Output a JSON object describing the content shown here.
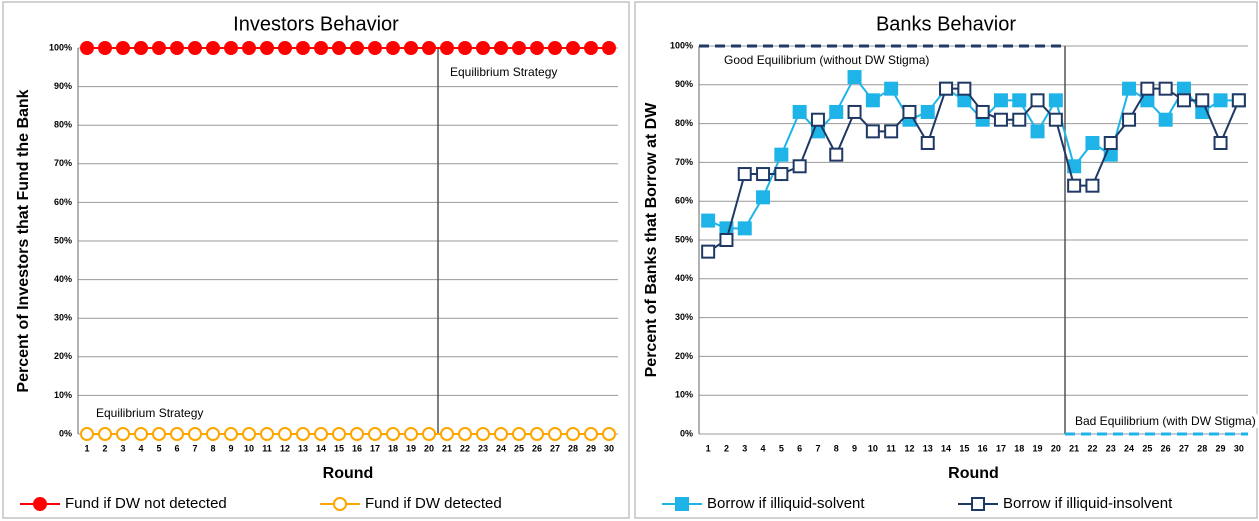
{
  "chart_data": [
    {
      "type": "line",
      "title": "Investors Behavior",
      "x_label": "Round",
      "y_label": "Percent of Investors that Fund the Bank",
      "categories": [
        1,
        2,
        3,
        4,
        5,
        6,
        7,
        8,
        9,
        10,
        11,
        12,
        13,
        14,
        15,
        16,
        17,
        18,
        19,
        20,
        21,
        22,
        23,
        24,
        25,
        26,
        27,
        28,
        29,
        30
      ],
      "series": [
        {
          "name": "Fund if DW not detected",
          "color": "#ff0000",
          "marker": "circle",
          "filled": true,
          "values": [
            100,
            100,
            100,
            100,
            100,
            100,
            100,
            100,
            100,
            100,
            100,
            100,
            100,
            100,
            100,
            100,
            100,
            100,
            100,
            100,
            100,
            100,
            100,
            100,
            100,
            100,
            100,
            100,
            100,
            100
          ]
        },
        {
          "name": "Fund if DW detected",
          "color": "#ffa500",
          "marker": "circle",
          "filled": false,
          "values": [
            0,
            0,
            0,
            0,
            0,
            0,
            0,
            0,
            0,
            0,
            0,
            0,
            0,
            0,
            0,
            0,
            0,
            0,
            0,
            0,
            0,
            0,
            0,
            0,
            0,
            0,
            0,
            0,
            0,
            0
          ]
        }
      ],
      "annotations": [
        "Equilibrium Strategy",
        "Equilibrium Strategy"
      ],
      "ylim": [
        0,
        100
      ],
      "yticks": [
        {
          "value": 0,
          "label": "0%"
        },
        {
          "value": 10,
          "label": "10%"
        },
        {
          "value": 20,
          "label": "20%"
        },
        {
          "value": 30,
          "label": "30%"
        },
        {
          "value": 40,
          "label": "40%"
        },
        {
          "value": 50,
          "label": "50%"
        },
        {
          "value": 60,
          "label": "60%"
        },
        {
          "value": 70,
          "label": "70%"
        },
        {
          "value": 80,
          "label": "80%"
        },
        {
          "value": 90,
          "label": "90%"
        },
        {
          "value": 100,
          "label": "100%"
        }
      ],
      "grid": true
    },
    {
      "type": "line",
      "title": "Banks Behavior",
      "x_label": "Round",
      "y_label": "Percent of Banks that Borrow at DW",
      "categories": [
        1,
        2,
        3,
        4,
        5,
        6,
        7,
        8,
        9,
        10,
        11,
        12,
        13,
        14,
        15,
        16,
        17,
        18,
        19,
        20,
        21,
        22,
        23,
        24,
        25,
        26,
        27,
        28,
        29,
        30
      ],
      "series": [
        {
          "name": "Borrow if illiquid-solvent",
          "color": "#1eb4e8",
          "marker": "square",
          "filled": true,
          "values": [
            55,
            53,
            53,
            61,
            72,
            83,
            78,
            83,
            92,
            86,
            89,
            81,
            83,
            89,
            86,
            81,
            86,
            86,
            78,
            86,
            69,
            75,
            72,
            89,
            86,
            81,
            89,
            83,
            86,
            86
          ]
        },
        {
          "name": "Borrow if illiquid-insolvent",
          "color": "#1f3864",
          "marker": "square",
          "filled": false,
          "values": [
            47,
            50,
            67,
            67,
            67,
            69,
            81,
            72,
            83,
            78,
            78,
            83,
            75,
            89,
            89,
            83,
            81,
            81,
            86,
            81,
            64,
            64,
            75,
            81,
            89,
            89,
            86,
            86,
            75,
            86
          ]
        }
      ],
      "equilibria": [
        {
          "label": "Good Equilibrium (without DW Stigma)",
          "value": 100,
          "rounds": [
            1,
            20
          ],
          "color": "#1f3864"
        },
        {
          "label": "Bad Equilibrium (with DW Stigma)",
          "value": 0,
          "rounds": [
            21,
            30
          ],
          "color": "#1eb4e8"
        }
      ],
      "ylim": [
        0,
        100
      ],
      "yticks": [
        {
          "value": 0,
          "label": "0%"
        },
        {
          "value": 10,
          "label": "10%"
        },
        {
          "value": 20,
          "label": "20%"
        },
        {
          "value": 30,
          "label": "30%"
        },
        {
          "value": 40,
          "label": "40%"
        },
        {
          "value": 50,
          "label": "50%"
        },
        {
          "value": 60,
          "label": "60%"
        },
        {
          "value": 70,
          "label": "70%"
        },
        {
          "value": 80,
          "label": "80%"
        },
        {
          "value": 90,
          "label": "90%"
        },
        {
          "value": 100,
          "label": "100%"
        }
      ],
      "grid": true
    }
  ]
}
